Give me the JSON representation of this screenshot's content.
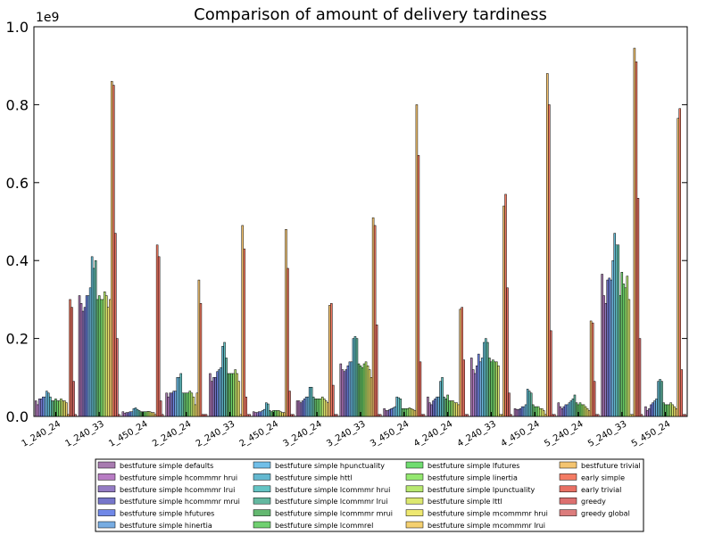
{
  "chart_data": {
    "type": "bar",
    "title": "Comparison of amount of delivery tardiness",
    "y_scale_label": "1e9",
    "categories": [
      "1_240_24",
      "1_240_33",
      "1_450_24",
      "2_240_24",
      "2_240_33",
      "2_450_24",
      "3_240_24",
      "3_240_33",
      "3_450_24",
      "4_240_24",
      "4_240_33",
      "4_450_24",
      "5_240_24",
      "5_240_33",
      "5_450_24"
    ],
    "ylim": [
      0,
      1
    ],
    "yticks": [
      {
        "value": 0,
        "label": "0.0"
      },
      0.2,
      0.4,
      0.6,
      0.8,
      {
        "value": 1,
        "label": "1.0"
      }
    ],
    "series": [
      {
        "name": "bestfuture simple defaults",
        "color": "#8b4f96",
        "values": [
          0.04,
          0.31,
          0.012,
          0.06,
          0.11,
          0.012,
          0.04,
          0.135,
          0.02,
          0.05,
          0.15,
          0.02,
          0.035,
          0.365,
          0.025
        ]
      },
      {
        "name": "bestfuture simple hcommmr hrui",
        "color": "#a050b0",
        "values": [
          0.03,
          0.29,
          0.008,
          0.05,
          0.09,
          0.01,
          0.04,
          0.12,
          0.015,
          0.035,
          0.12,
          0.018,
          0.025,
          0.31,
          0.015
        ]
      },
      {
        "name": "bestfuture simple hcommmr lrui",
        "color": "#7050b0",
        "values": [
          0.045,
          0.27,
          0.01,
          0.06,
          0.1,
          0.01,
          0.035,
          0.115,
          0.015,
          0.03,
          0.11,
          0.018,
          0.02,
          0.29,
          0.02
        ]
      },
      {
        "name": "bestfuture simple hcommmr mrui",
        "color": "#4848b8",
        "values": [
          0.045,
          0.28,
          0.01,
          0.06,
          0.1,
          0.012,
          0.04,
          0.12,
          0.018,
          0.04,
          0.13,
          0.02,
          0.025,
          0.35,
          0.03
        ]
      },
      {
        "name": "bestfuture simple hfutures",
        "color": "#4060e0",
        "values": [
          0.05,
          0.31,
          0.012,
          0.065,
          0.115,
          0.012,
          0.045,
          0.13,
          0.02,
          0.045,
          0.16,
          0.025,
          0.03,
          0.355,
          0.035
        ]
      },
      {
        "name": "bestfuture simple hinertia",
        "color": "#4a90d8",
        "values": [
          0.05,
          0.31,
          0.012,
          0.065,
          0.12,
          0.015,
          0.05,
          0.14,
          0.022,
          0.05,
          0.14,
          0.025,
          0.03,
          0.35,
          0.04
        ]
      },
      {
        "name": "bestfuture simple hpunctuality",
        "color": "#40a8e0",
        "values": [
          0.065,
          0.33,
          0.02,
          0.1,
          0.125,
          0.018,
          0.05,
          0.14,
          0.025,
          0.05,
          0.15,
          0.03,
          0.035,
          0.4,
          0.045
        ]
      },
      {
        "name": "bestfuture simple httl",
        "color": "#30a0c0",
        "values": [
          0.06,
          0.41,
          0.022,
          0.1,
          0.18,
          0.035,
          0.075,
          0.2,
          0.05,
          0.09,
          0.19,
          0.07,
          0.04,
          0.47,
          0.09
        ]
      },
      {
        "name": "bestfuture simple lcommmr hrui",
        "color": "#30b0b0",
        "values": [
          0.05,
          0.38,
          0.018,
          0.11,
          0.19,
          0.032,
          0.075,
          0.205,
          0.048,
          0.1,
          0.2,
          0.065,
          0.045,
          0.44,
          0.095
        ]
      },
      {
        "name": "bestfuture simple lcommmr lrui",
        "color": "#30a080",
        "values": [
          0.04,
          0.4,
          0.015,
          0.06,
          0.15,
          0.015,
          0.05,
          0.2,
          0.045,
          0.05,
          0.19,
          0.06,
          0.055,
          0.44,
          0.09
        ]
      },
      {
        "name": "bestfuture simple lcommmr mrui",
        "color": "#30a040",
        "values": [
          0.04,
          0.3,
          0.012,
          0.06,
          0.11,
          0.012,
          0.045,
          0.135,
          0.02,
          0.045,
          0.15,
          0.03,
          0.035,
          0.31,
          0.035
        ]
      },
      {
        "name": "bestfuture simple lcommrel",
        "color": "#40c040",
        "values": [
          0.045,
          0.31,
          0.012,
          0.06,
          0.11,
          0.015,
          0.045,
          0.13,
          0.02,
          0.055,
          0.14,
          0.025,
          0.03,
          0.37,
          0.03
        ]
      },
      {
        "name": "bestfuture simple lfutures",
        "color": "#40d040",
        "values": [
          0.04,
          0.3,
          0.012,
          0.06,
          0.11,
          0.015,
          0.045,
          0.125,
          0.02,
          0.04,
          0.145,
          0.025,
          0.035,
          0.34,
          0.03
        ]
      },
      {
        "name": "bestfuture simple linertia",
        "color": "#70e040",
        "values": [
          0.04,
          0.3,
          0.012,
          0.065,
          0.11,
          0.015,
          0.045,
          0.135,
          0.02,
          0.04,
          0.14,
          0.025,
          0.03,
          0.33,
          0.03
        ]
      },
      {
        "name": "bestfuture simple lpunctuality",
        "color": "#a0e040",
        "values": [
          0.045,
          0.32,
          0.013,
          0.06,
          0.12,
          0.015,
          0.05,
          0.14,
          0.022,
          0.04,
          0.14,
          0.02,
          0.03,
          0.36,
          0.035
        ]
      },
      {
        "name": "bestfuture simple lttl",
        "color": "#d0e040",
        "values": [
          0.04,
          0.31,
          0.012,
          0.05,
          0.11,
          0.012,
          0.045,
          0.13,
          0.02,
          0.035,
          0.13,
          0.02,
          0.025,
          0.3,
          0.03
        ]
      },
      {
        "name": "bestfuture simple mcommmr hrui",
        "color": "#e8e040",
        "values": [
          0.04,
          0.28,
          0.01,
          0.03,
          0.09,
          0.01,
          0.04,
          0.12,
          0.018,
          0.035,
          0.005,
          0.015,
          0.02,
          0.005,
          0.025
        ]
      },
      {
        "name": "bestfuture simple mcommmr lrui",
        "color": "#f0c040",
        "values": [
          0.035,
          0.3,
          0.01,
          0.06,
          0.005,
          0.01,
          0.035,
          0.1,
          0.015,
          0.03,
          0.005,
          0.005,
          0.015,
          0.005,
          0.02
        ]
      },
      {
        "name": "bestfuture trivial",
        "color": "#f0b040",
        "values": [
          0.005,
          0.86,
          0.005,
          0.35,
          0.49,
          0.48,
          0.285,
          0.51,
          0.8,
          0.275,
          0.54,
          0.88,
          0.245,
          0.945,
          0.765
        ]
      },
      {
        "name": "early simple",
        "color": "#f05030",
        "values": [
          0.3,
          0.85,
          0.44,
          0.29,
          0.43,
          0.38,
          0.29,
          0.49,
          0.67,
          0.28,
          0.57,
          0.8,
          0.24,
          0.91,
          0.79
        ]
      },
      {
        "name": "early trivial",
        "color": "#e04030",
        "values": [
          0.28,
          0.47,
          0.41,
          0.005,
          0.05,
          0.065,
          0.08,
          0.235,
          0.14,
          0.145,
          0.33,
          0.22,
          0.09,
          0.56,
          0.12
        ]
      },
      {
        "name": "greedy",
        "color": "#d04040",
        "values": [
          0.09,
          0.2,
          0.04,
          0.005,
          0.005,
          0.005,
          0.005,
          0.005,
          0.005,
          0.005,
          0.06,
          0.005,
          0.005,
          0.2,
          0.005
        ]
      },
      {
        "name": "greedy global",
        "color": "#d05050",
        "values": [
          0.005,
          0.005,
          0.005,
          0.005,
          0.005,
          0.005,
          0.005,
          0.005,
          0.005,
          0.005,
          0.005,
          0.005,
          0.005,
          0.005,
          0.005
        ]
      }
    ]
  }
}
